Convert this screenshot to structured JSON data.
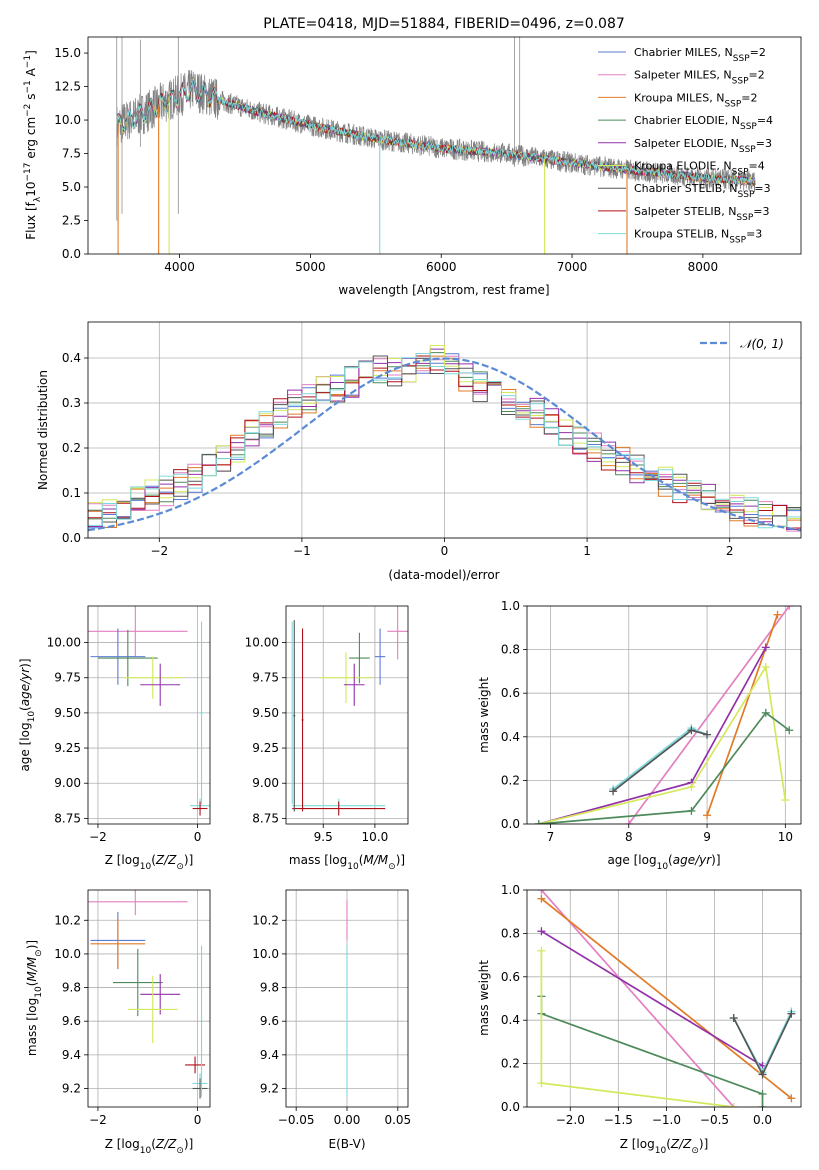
{
  "colors": {
    "chab_miles": "#5B7BD5",
    "salp_miles": "#E37FC0",
    "krou_miles": "#E07B28",
    "chab_elodie": "#4E8A5B",
    "salp_elodie": "#9130A8",
    "krou_elodie": "#D4E85C",
    "chab_stelib": "#555555",
    "salp_stelib": "#B0101A",
    "krou_stelib": "#7ED9DC",
    "normal": "#5B8BD5",
    "data_spectrum": "#808080",
    "grid": "#B0B0B0"
  },
  "chart_data": [
    {
      "id": "spectrum",
      "type": "line",
      "title": "PLATE=0418, MJD=51884, FIBERID=0496, z=0.087",
      "xlabel": "wavelength [Angstrom, rest frame]",
      "ylabel": "Flux [f$_\\lambda$10$^{-17}$ erg cm$^{-2}$ s$^{-1}$ A$^{-1}$]",
      "ylabel_parts": [
        "Flux [f",
        "λ",
        "10",
        "−17",
        " erg cm",
        "−2",
        " s",
        "−1",
        " A",
        "−1",
        "]"
      ],
      "xlim": [
        3300,
        8750
      ],
      "ylim": [
        0,
        16.2
      ],
      "xticks": [
        4000,
        5000,
        6000,
        7000,
        8000
      ],
      "yticks": [
        0.0,
        2.5,
        5.0,
        7.5,
        10.0,
        12.5,
        15.0
      ],
      "grid": false,
      "legend_position": "upper-right",
      "continuum_points": [
        [
          3520,
          9.6
        ],
        [
          3700,
          10.4
        ],
        [
          3900,
          11.4
        ],
        [
          4100,
          12.3
        ],
        [
          4300,
          11.5
        ],
        [
          4600,
          10.6
        ],
        [
          5000,
          9.6
        ],
        [
          5500,
          8.6
        ],
        [
          6000,
          7.9
        ],
        [
          6500,
          7.5
        ],
        [
          7000,
          6.8
        ],
        [
          7500,
          6.2
        ],
        [
          8000,
          5.7
        ],
        [
          8400,
          5.4
        ]
      ],
      "series": [
        {
          "name": "Chabrier MILES, N$_{SSP}$=2",
          "color_key": "chab_miles"
        },
        {
          "name": "Salpeter MILES, N$_{SSP}$=2",
          "color_key": "salp_miles"
        },
        {
          "name": "Kroupa MILES, N$_{SSP}$=2",
          "color_key": "krou_miles"
        },
        {
          "name": "Chabrier ELODIE, N$_{SSP}$=4",
          "color_key": "chab_elodie"
        },
        {
          "name": "Salpeter ELODIE, N$_{SSP}$=3",
          "color_key": "salp_elodie"
        },
        {
          "name": "Kroupa ELODIE, N$_{SSP}$=4",
          "color_key": "krou_elodie"
        },
        {
          "name": "Chabrier STELIB, N$_{SSP}$=3",
          "color_key": "chab_stelib"
        },
        {
          "name": "Salpeter STELIB, N$_{SSP}$=3",
          "color_key": "salp_stelib"
        },
        {
          "name": "Kroupa STELIB, N$_{SSP}$=3",
          "color_key": "krou_stelib"
        }
      ],
      "legend_labels": [
        [
          "Chabrier MILES, N",
          "SSP",
          "=2"
        ],
        [
          "Salpeter MILES, N",
          "SSP",
          "=2"
        ],
        [
          "Kroupa MILES, N",
          "SSP",
          "=2"
        ],
        [
          "Chabrier ELODIE, N",
          "SSP",
          "=4"
        ],
        [
          "Salpeter ELODIE, N",
          "SSP",
          "=3"
        ],
        [
          "Kroupa ELODIE, N",
          "SSP",
          "=4"
        ],
        [
          "Chabrier STELIB, N",
          "SSP",
          "=3"
        ],
        [
          "Salpeter STELIB, N",
          "SSP",
          "=3"
        ],
        [
          "Kroupa STELIB, N",
          "SSP",
          "=3"
        ]
      ]
    },
    {
      "id": "residuals",
      "type": "line",
      "xlabel": "(data-model)/error",
      "ylabel": "Normed distribution",
      "xlim": [
        -2.5,
        2.5
      ],
      "ylim": [
        0,
        0.48
      ],
      "xticks": [
        -2,
        -1,
        0,
        1,
        2
      ],
      "yticks": [
        0.0,
        0.1,
        0.2,
        0.3,
        0.4
      ],
      "grid": true,
      "legend_position": "upper-right",
      "legend_label": "𝒩(0, 1)",
      "bin_width": 0.1,
      "step_envelope": [
        [
          -2.5,
          0.05
        ],
        [
          -2.3,
          0.06
        ],
        [
          -2.1,
          0.09
        ],
        [
          -1.9,
          0.11
        ],
        [
          -1.7,
          0.14
        ],
        [
          -1.5,
          0.19
        ],
        [
          -1.3,
          0.24
        ],
        [
          -1.1,
          0.29
        ],
        [
          -0.9,
          0.32
        ],
        [
          -0.7,
          0.34
        ],
        [
          -0.5,
          0.37
        ],
        [
          -0.3,
          0.37
        ],
        [
          -0.1,
          0.39
        ],
        [
          0.0,
          0.41
        ],
        [
          0.1,
          0.36
        ],
        [
          0.3,
          0.33
        ],
        [
          0.5,
          0.3
        ],
        [
          0.7,
          0.27
        ],
        [
          0.9,
          0.23
        ],
        [
          1.1,
          0.19
        ],
        [
          1.3,
          0.16
        ],
        [
          1.5,
          0.13
        ],
        [
          1.7,
          0.1
        ],
        [
          1.9,
          0.08
        ],
        [
          2.1,
          0.06
        ],
        [
          2.3,
          0.05
        ],
        [
          2.5,
          0.04
        ]
      ]
    },
    {
      "id": "age_vs_Z",
      "type": "scatter",
      "xlabel": "Z [log$_{10}$(Z/Z$_\\odot$)]",
      "xlabel_parts": [
        "Z [log",
        "10",
        "(",
        "Z/Z",
        "⊙",
        ")]"
      ],
      "ylabel": "age  [log$_{10}$(age/yr)]",
      "ylabel_parts": [
        "age  [log",
        "10",
        "(",
        "age/yr",
        ")]"
      ],
      "xlim": [
        -2.2,
        0.25
      ],
      "ylim": [
        8.71,
        10.26
      ],
      "xticks": [
        -2,
        0
      ],
      "yticks": [
        8.75,
        9.0,
        9.25,
        9.5,
        9.75,
        10.0
      ],
      "grid": true,
      "points": [
        {
          "color_key": "salp_miles",
          "x": -1.25,
          "y": 10.08,
          "xerr": 1.05,
          "yerr": 0.18
        },
        {
          "color_key": "chab_miles",
          "x": -1.6,
          "y": 9.9,
          "xerr": 0.55,
          "yerr": 0.2
        },
        {
          "color_key": "chab_elodie",
          "x": -1.4,
          "y": 9.89,
          "xerr": 0.6,
          "yerr": 0.2
        },
        {
          "color_key": "krou_elodie",
          "x": -0.9,
          "y": 9.75,
          "xerr": 0.6,
          "yerr": 0.15
        },
        {
          "color_key": "salp_elodie",
          "x": -0.75,
          "y": 9.7,
          "xerr": 0.4,
          "yerr": 0.15
        },
        {
          "color_key": "krou_stelib",
          "x": 0.05,
          "y": 8.84,
          "xerr": 0.2,
          "yerr": 0.05
        },
        {
          "color_key": "salp_stelib",
          "x": 0.05,
          "y": 8.82,
          "xerr": 0.15,
          "yerr": 0.05
        },
        {
          "color_key": "krou_stelib",
          "x": 0.08,
          "y": 9.5,
          "xerr": 0.03,
          "yerr": 0.65
        }
      ]
    },
    {
      "id": "age_vs_mass",
      "type": "scatter",
      "xlabel": "mass [log$_{10}$(M/M$_\\odot$)]",
      "xlabel_parts": [
        "mass [log",
        "10",
        "(",
        "M/M",
        "⊙",
        ")]"
      ],
      "xlim": [
        9.14,
        10.32
      ],
      "ylim": [
        8.71,
        10.26
      ],
      "xticks": [
        9.5,
        10.0
      ],
      "yticks": [
        8.75,
        9.0,
        9.25,
        9.5,
        9.75,
        10.0
      ],
      "grid": true,
      "points": [
        {
          "color_key": "salp_miles",
          "x": 10.22,
          "y": 10.08,
          "xerr": 0.1,
          "yerr": 0.2
        },
        {
          "color_key": "chab_miles",
          "x": 10.05,
          "y": 9.9,
          "xerr": 0.05,
          "yerr": 0.2
        },
        {
          "color_key": "chab_elodie",
          "x": 9.85,
          "y": 9.89,
          "xerr": 0.1,
          "yerr": 0.18
        },
        {
          "color_key": "krou_elodie",
          "x": 9.72,
          "y": 9.75,
          "xerr": 0.25,
          "yerr": 0.18
        },
        {
          "color_key": "salp_elodie",
          "x": 9.8,
          "y": 9.7,
          "xerr": 0.1,
          "yerr": 0.15
        },
        {
          "color_key": "krou_stelib",
          "x": 9.65,
          "y": 8.84,
          "xerr": 0.45,
          "yerr": 0.05
        },
        {
          "color_key": "salp_stelib",
          "x": 9.65,
          "y": 8.82,
          "xerr": 0.45,
          "yerr": 0.05
        },
        {
          "color_key": "krou_stelib",
          "x": 9.2,
          "y": 9.5,
          "xerr": 0.01,
          "yerr": 0.65
        },
        {
          "color_key": "salp_stelib",
          "x": 9.3,
          "y": 9.45,
          "xerr": 0.01,
          "yerr": 0.65
        },
        {
          "color_key": "chab_stelib",
          "x": 9.22,
          "y": 9.48,
          "xerr": 0.01,
          "yerr": 0.68
        }
      ]
    },
    {
      "id": "massweight_vs_age",
      "type": "line",
      "xlabel": "age  [log$_{10}$(age/yr)]",
      "xlabel_parts": [
        "age  [log",
        "10",
        "(",
        "age/yr",
        ")]"
      ],
      "ylabel": "mass weight",
      "xlim": [
        6.7,
        10.2
      ],
      "ylim": [
        0,
        1.0
      ],
      "xticks": [
        7,
        8,
        9,
        10
      ],
      "yticks": [
        0.0,
        0.2,
        0.4,
        0.6,
        0.8,
        1.0
      ],
      "grid": true,
      "series": [
        {
          "color_key": "salp_miles",
          "x": [
            8.0,
            10.05
          ],
          "y": [
            0.0,
            1.0
          ]
        },
        {
          "color_key": "krou_miles",
          "x": [
            9.0,
            9.9
          ],
          "y": [
            0.04,
            0.96
          ]
        },
        {
          "color_key": "salp_elodie",
          "x": [
            6.85,
            8.8,
            9.75
          ],
          "y": [
            0.0,
            0.19,
            0.81
          ]
        },
        {
          "color_key": "krou_elodie",
          "x": [
            6.85,
            8.8,
            9.75,
            10.0
          ],
          "y": [
            0.0,
            0.17,
            0.72,
            0.11
          ]
        },
        {
          "color_key": "chab_elodie",
          "x": [
            6.85,
            8.8,
            9.75,
            10.05
          ],
          "y": [
            0.0,
            0.06,
            0.51,
            0.43
          ]
        },
        {
          "color_key": "krou_stelib",
          "x": [
            7.8,
            8.8,
            9.0
          ],
          "y": [
            0.16,
            0.44,
            0.41
          ]
        },
        {
          "color_key": "chab_stelib",
          "x": [
            7.8,
            8.8,
            9.0
          ],
          "y": [
            0.15,
            0.43,
            0.41
          ]
        }
      ]
    },
    {
      "id": "mass_vs_Z",
      "type": "scatter",
      "xlabel": "Z [log$_{10}$(Z/Z$_\\odot$)]",
      "xlabel_parts": [
        "Z [log",
        "10",
        "(",
        "Z/Z",
        "⊙",
        ")]"
      ],
      "ylabel": "mass [log$_{10}$(M/M$_\\odot$)]",
      "ylabel_parts": [
        "mass [log",
        "10",
        "(",
        "M/M",
        "⊙",
        ")]"
      ],
      "xlim": [
        -2.2,
        0.25
      ],
      "ylim": [
        9.09,
        10.38
      ],
      "xticks": [
        -2,
        0
      ],
      "yticks": [
        9.2,
        9.4,
        9.6,
        9.8,
        10.0,
        10.2
      ],
      "grid": true,
      "points": [
        {
          "color_key": "salp_miles",
          "x": -1.25,
          "y": 10.31,
          "xerr": 1.05,
          "yerr": 0.08
        },
        {
          "color_key": "chab_miles",
          "x": -1.6,
          "y": 10.08,
          "xerr": 0.55,
          "yerr": 0.17
        },
        {
          "color_key": "krou_miles",
          "x": -1.6,
          "y": 10.06,
          "xerr": 0.55,
          "yerr": 0.15
        },
        {
          "color_key": "chab_elodie",
          "x": -1.2,
          "y": 9.83,
          "xerr": 0.5,
          "yerr": 0.2
        },
        {
          "color_key": "salp_elodie",
          "x": -0.75,
          "y": 9.76,
          "xerr": 0.4,
          "yerr": 0.12
        },
        {
          "color_key": "krou_elodie",
          "x": -0.9,
          "y": 9.67,
          "xerr": 0.5,
          "yerr": 0.2
        },
        {
          "color_key": "salp_stelib",
          "x": -0.05,
          "y": 9.34,
          "xerr": 0.2,
          "yerr": 0.05
        },
        {
          "color_key": "krou_stelib",
          "x": 0.05,
          "y": 9.23,
          "xerr": 0.15,
          "yerr": 0.06
        },
        {
          "color_key": "chab_stelib",
          "x": 0.05,
          "y": 9.2,
          "xerr": 0.15,
          "yerr": 0.06
        },
        {
          "color_key": "krou_stelib",
          "x": 0.08,
          "y": 9.6,
          "xerr": 0.02,
          "yerr": 0.45
        }
      ]
    },
    {
      "id": "mass_vs_EBV",
      "type": "scatter",
      "xlabel": "E(B-V)",
      "xlim": [
        -0.06,
        0.06
      ],
      "ylim": [
        9.09,
        10.38
      ],
      "xticks": [
        -0.05,
        0.0,
        0.05
      ],
      "yticks": [
        9.2,
        9.4,
        9.6,
        9.8,
        10.0,
        10.2
      ],
      "grid": true,
      "points": [
        {
          "color_key": "salp_miles",
          "x": 0.0,
          "y": 10.2,
          "xerr": 0.0,
          "yerr": 0.12
        },
        {
          "color_key": "krou_stelib",
          "x": 0.0,
          "y": 9.6,
          "xerr": 0.0,
          "yerr": 0.45
        }
      ]
    },
    {
      "id": "massweight_vs_Z",
      "type": "line",
      "xlabel": "Z [log$_{10}$(Z/Z$_\\odot$)]",
      "xlabel_parts": [
        "Z [log",
        "10",
        "(",
        "Z/Z",
        "⊙",
        ")]"
      ],
      "ylabel": "mass weight",
      "xlim": [
        -2.45,
        0.4
      ],
      "ylim": [
        0,
        1.0
      ],
      "xticks": [
        -2.0,
        -1.5,
        -1.0,
        -0.5,
        0.0
      ],
      "yticks": [
        0.0,
        0.2,
        0.4,
        0.6,
        0.8,
        1.0
      ],
      "grid": true,
      "series": [
        {
          "color_key": "salp_miles",
          "x": [
            -2.3,
            -0.3
          ],
          "y": [
            1.0,
            0.0
          ]
        },
        {
          "color_key": "krou_miles",
          "x": [
            -2.3,
            0.3
          ],
          "y": [
            0.96,
            0.04
          ]
        },
        {
          "color_key": "salp_elodie",
          "x": [
            -2.3,
            0.0
          ],
          "y": [
            0.81,
            0.19
          ]
        },
        {
          "color_key": "chab_elodie",
          "x": [
            -2.3,
            -2.3,
            0.0,
            0.0
          ],
          "y": [
            0.51,
            0.43,
            0.06,
            0.0
          ]
        },
        {
          "color_key": "krou_elodie",
          "x": [
            -2.3,
            -2.3,
            -0.3
          ],
          "y": [
            0.72,
            0.11,
            0.0
          ]
        },
        {
          "color_key": "krou_stelib",
          "x": [
            -0.3,
            0.0,
            0.3
          ],
          "y": [
            0.41,
            0.16,
            0.44
          ]
        },
        {
          "color_key": "chab_stelib",
          "x": [
            -0.3,
            0.0,
            0.3
          ],
          "y": [
            0.41,
            0.15,
            0.43
          ]
        }
      ]
    }
  ]
}
